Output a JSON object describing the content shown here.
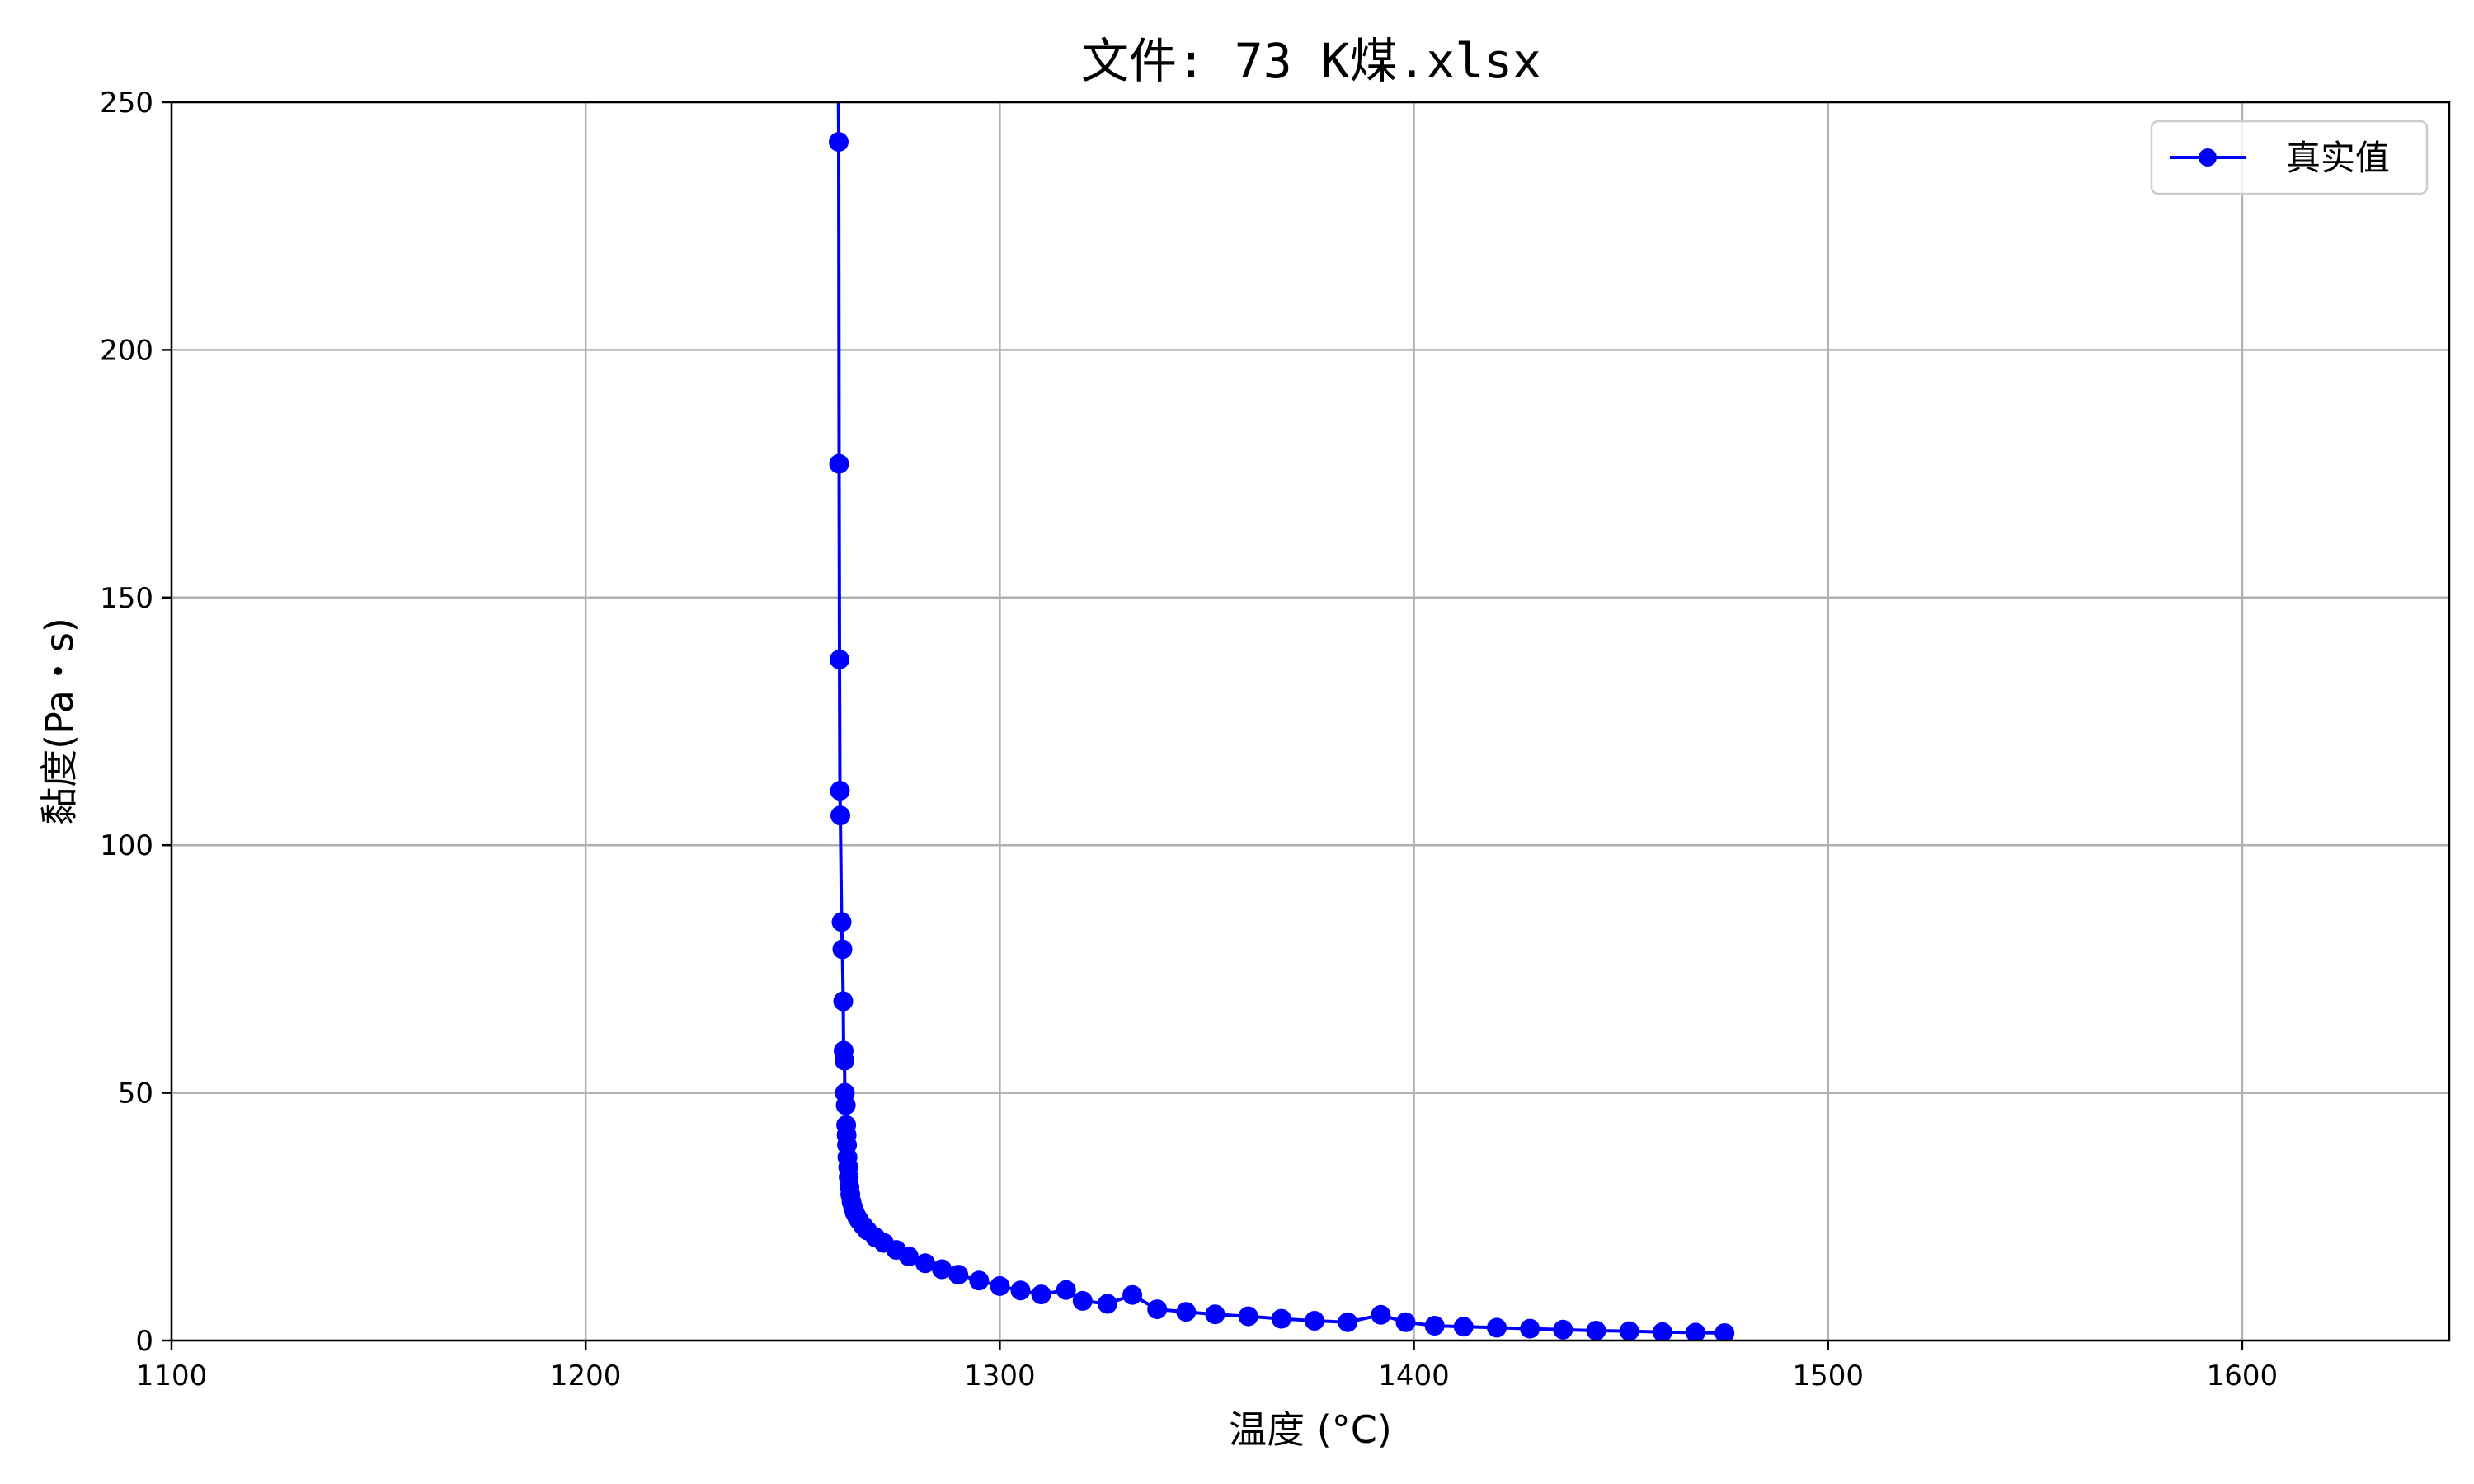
{
  "chart_data": {
    "type": "line",
    "title": "文件: 73 K煤.xlsx",
    "xlabel": "温度 (°C)",
    "ylabel": "黏度(Pa・s)",
    "xlim": [
      1100,
      1650
    ],
    "ylim": [
      0,
      250
    ],
    "xticks": [
      1100,
      1200,
      1300,
      1400,
      1500,
      1600
    ],
    "yticks": [
      0,
      50,
      100,
      150,
      200,
      250
    ],
    "grid": true,
    "legend_position": "top-right",
    "series": [
      {
        "name": "真实值",
        "color": "#0000ff",
        "marker": "circle",
        "x": [
          1261.0,
          1261.1,
          1261.2,
          1261.3,
          1261.4,
          1261.5,
          1261.8,
          1262.0,
          1262.2,
          1262.3,
          1262.5,
          1262.6,
          1262.8,
          1262.9,
          1263.0,
          1263.1,
          1263.2,
          1263.4,
          1263.5,
          1263.7,
          1263.9,
          1264.2,
          1264.6,
          1265.0,
          1265.5,
          1266,
          1267,
          1268,
          1270,
          1272,
          1275,
          1278,
          1282,
          1286,
          1290,
          1295,
          1300,
          1305,
          1310,
          1316,
          1320,
          1326,
          1332,
          1338,
          1345,
          1352,
          1360,
          1368,
          1376,
          1384,
          1392,
          1398,
          1405,
          1412,
          1420,
          1428,
          1436,
          1444,
          1452,
          1460,
          1468,
          1475
        ],
        "y": [
          260,
          242,
          177,
          137.5,
          111,
          106,
          84.5,
          79,
          68.5,
          58.5,
          56.5,
          50,
          47.5,
          43.5,
          41.5,
          39.5,
          37,
          35,
          33,
          31,
          29.5,
          28,
          26.8,
          25.8,
          25,
          24.3,
          23.2,
          22.2,
          20.8,
          19.7,
          18.3,
          17,
          15.6,
          14.4,
          13.3,
          12.1,
          11,
          10.1,
          9.3,
          10.2,
          8.0,
          7.4,
          9.2,
          6.3,
          5.8,
          5.3,
          4.9,
          4.4,
          4.0,
          3.7,
          5.2,
          3.7,
          3.0,
          2.8,
          2.6,
          2.4,
          2.2,
          2.0,
          1.9,
          1.7,
          1.6,
          1.5
        ]
      }
    ]
  }
}
